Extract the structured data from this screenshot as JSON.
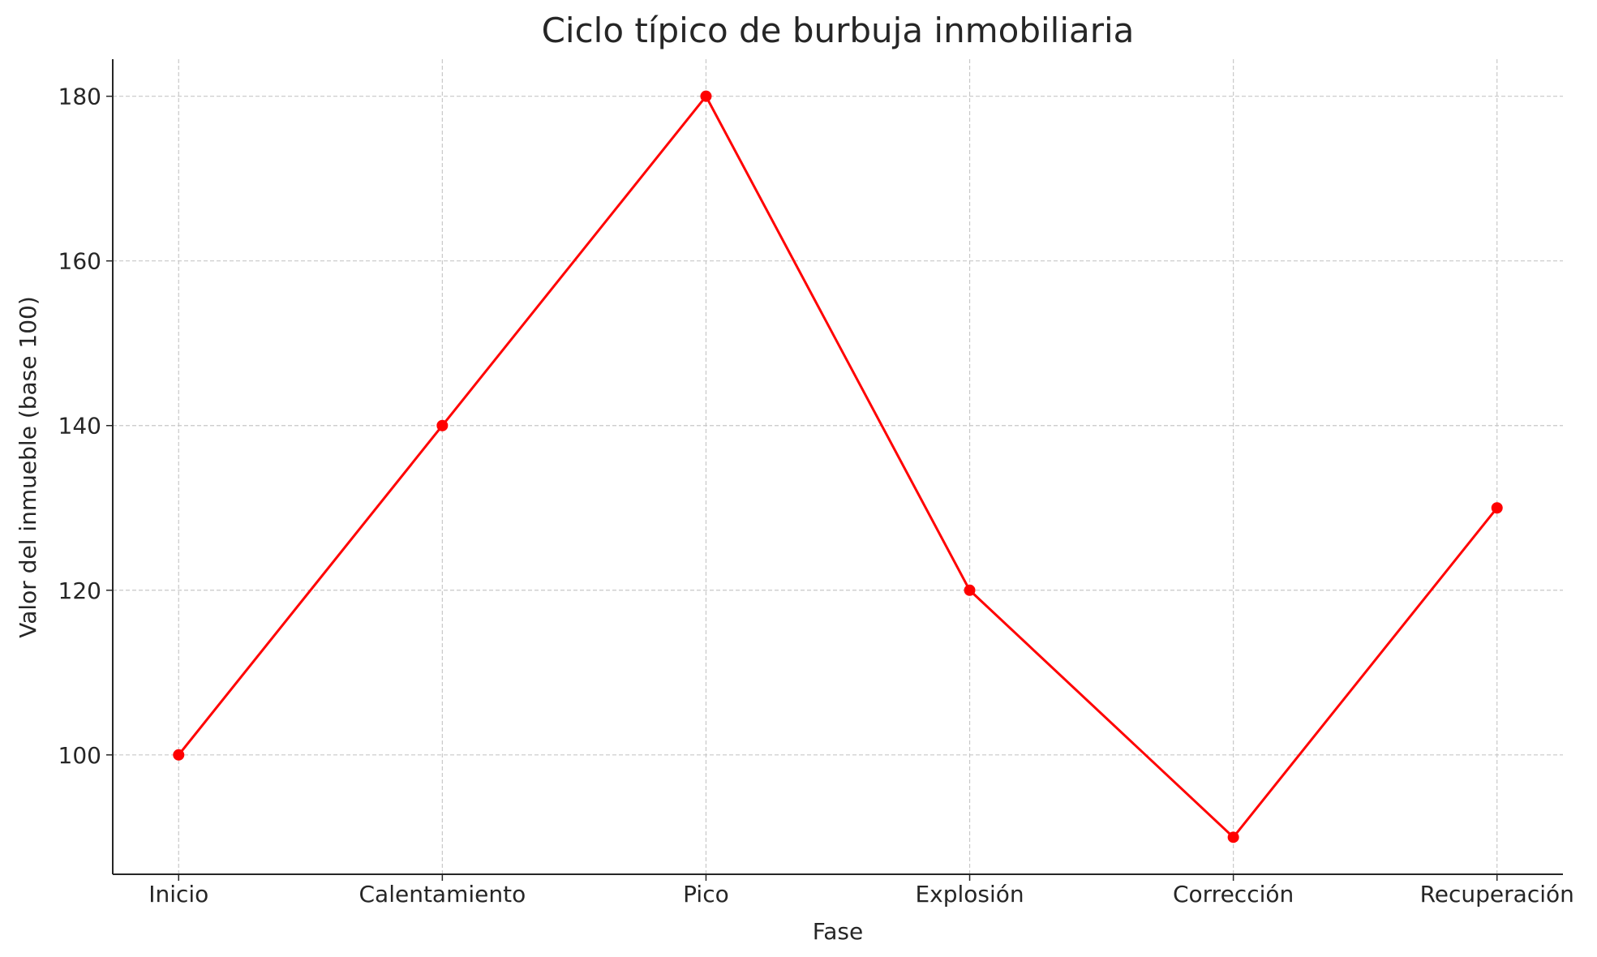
{
  "chart_data": {
    "type": "line",
    "title": "Ciclo típico de burbuja inmobiliaria",
    "x_label": "Fase",
    "y_label": "Valor del inmueble (base 100)",
    "categories": [
      "Inicio",
      "Calentamiento",
      "Pico",
      "Explosión",
      "Corrección",
      "Recuperación"
    ],
    "values": [
      100,
      140,
      180,
      120,
      90,
      130
    ],
    "color": "#ff0000",
    "ylim": [
      85.5,
      184.5
    ],
    "yticks": [
      100,
      120,
      140,
      160,
      180
    ],
    "grid": true
  }
}
